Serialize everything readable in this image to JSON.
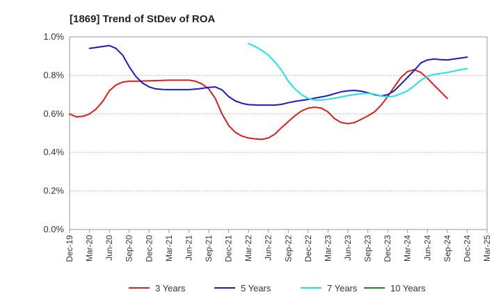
{
  "chart_data": {
    "type": "line",
    "title": "[1869]  Trend of StDev of ROA",
    "xlabel": "",
    "ylabel": "",
    "ylim": [
      0,
      0.01
    ],
    "y_ticks": [
      "0.0%",
      "0.2%",
      "0.4%",
      "0.6%",
      "0.8%",
      "1.0%"
    ],
    "x_ticks": [
      "Dec-19",
      "Mar-20",
      "Jun-20",
      "Sep-20",
      "Dec-20",
      "Mar-21",
      "Jun-21",
      "Sep-21",
      "Dec-21",
      "Mar-22",
      "Jun-22",
      "Sep-22",
      "Dec-22",
      "Mar-23",
      "Jun-23",
      "Sep-23",
      "Dec-23",
      "Mar-24",
      "Jun-24",
      "Sep-24",
      "Dec-24",
      "Mar-25"
    ],
    "grid": "horizontal dotted",
    "legend_position": "bottom",
    "series": [
      {
        "name": "3 Years",
        "color": "#e31a1c",
        "points": [
          [
            0,
            0.006
          ],
          [
            0.33,
            0.00585
          ],
          [
            0.67,
            0.00587
          ],
          [
            1,
            0.006
          ],
          [
            1.33,
            0.00625
          ],
          [
            1.67,
            0.00665
          ],
          [
            2,
            0.0072
          ],
          [
            2.33,
            0.0075
          ],
          [
            2.67,
            0.00765
          ],
          [
            3,
            0.0077
          ],
          [
            3.5,
            0.0077
          ],
          [
            4,
            0.00772
          ],
          [
            4.5,
            0.00773
          ],
          [
            5,
            0.00775
          ],
          [
            5.5,
            0.00775
          ],
          [
            6,
            0.00775
          ],
          [
            6.33,
            0.0077
          ],
          [
            6.67,
            0.00755
          ],
          [
            7,
            0.0073
          ],
          [
            7.33,
            0.0068
          ],
          [
            7.67,
            0.006
          ],
          [
            8,
            0.0054
          ],
          [
            8.33,
            0.00505
          ],
          [
            8.67,
            0.00485
          ],
          [
            9,
            0.00475
          ],
          [
            9.33,
            0.0047
          ],
          [
            9.67,
            0.00468
          ],
          [
            10,
            0.00475
          ],
          [
            10.33,
            0.00495
          ],
          [
            10.67,
            0.0053
          ],
          [
            11,
            0.0056
          ],
          [
            11.33,
            0.0059
          ],
          [
            11.67,
            0.00615
          ],
          [
            12,
            0.0063
          ],
          [
            12.33,
            0.00635
          ],
          [
            12.67,
            0.0063
          ],
          [
            13,
            0.0061
          ],
          [
            13.33,
            0.00575
          ],
          [
            13.67,
            0.00555
          ],
          [
            14,
            0.0055
          ],
          [
            14.33,
            0.00555
          ],
          [
            14.67,
            0.00572
          ],
          [
            15,
            0.0059
          ],
          [
            15.33,
            0.0061
          ],
          [
            15.67,
            0.00645
          ],
          [
            16,
            0.0069
          ],
          [
            16.33,
            0.0074
          ],
          [
            16.67,
            0.0079
          ],
          [
            17,
            0.0082
          ],
          [
            17.33,
            0.0083
          ],
          [
            17.67,
            0.00815
          ],
          [
            18,
            0.00785
          ],
          [
            18.33,
            0.0075
          ],
          [
            18.67,
            0.00715
          ],
          [
            19,
            0.0068
          ]
        ]
      },
      {
        "name": "5 Years",
        "color": "#1919c8",
        "points": [
          [
            1,
            0.0094
          ],
          [
            1.33,
            0.00945
          ],
          [
            1.67,
            0.0095
          ],
          [
            2,
            0.00955
          ],
          [
            2.33,
            0.0094
          ],
          [
            2.67,
            0.00905
          ],
          [
            3,
            0.00845
          ],
          [
            3.33,
            0.00795
          ],
          [
            3.67,
            0.0076
          ],
          [
            4,
            0.0074
          ],
          [
            4.33,
            0.0073
          ],
          [
            4.67,
            0.00727
          ],
          [
            5,
            0.00726
          ],
          [
            5.5,
            0.00726
          ],
          [
            6,
            0.00726
          ],
          [
            6.5,
            0.0073
          ],
          [
            7,
            0.00738
          ],
          [
            7.33,
            0.0074
          ],
          [
            7.67,
            0.00725
          ],
          [
            8,
            0.0069
          ],
          [
            8.33,
            0.00668
          ],
          [
            8.67,
            0.00655
          ],
          [
            9,
            0.00648
          ],
          [
            9.5,
            0.00646
          ],
          [
            10,
            0.00646
          ],
          [
            10.33,
            0.00646
          ],
          [
            10.67,
            0.0065
          ],
          [
            11,
            0.00658
          ],
          [
            11.33,
            0.00665
          ],
          [
            11.67,
            0.0067
          ],
          [
            12,
            0.00675
          ],
          [
            12.33,
            0.00682
          ],
          [
            12.67,
            0.00688
          ],
          [
            13,
            0.00695
          ],
          [
            13.33,
            0.00705
          ],
          [
            13.67,
            0.00715
          ],
          [
            14,
            0.0072
          ],
          [
            14.33,
            0.00722
          ],
          [
            14.67,
            0.00718
          ],
          [
            15,
            0.0071
          ],
          [
            15.33,
            0.007
          ],
          [
            15.67,
            0.00693
          ],
          [
            16,
            0.007
          ],
          [
            16.33,
            0.0072
          ],
          [
            16.67,
            0.00755
          ],
          [
            17,
            0.0079
          ],
          [
            17.33,
            0.00825
          ],
          [
            17.67,
            0.00865
          ],
          [
            18,
            0.0088
          ],
          [
            18.33,
            0.00885
          ],
          [
            18.67,
            0.00882
          ],
          [
            19,
            0.0088
          ],
          [
            19.33,
            0.00885
          ],
          [
            19.67,
            0.0089
          ],
          [
            20,
            0.00895
          ]
        ]
      },
      {
        "name": "7 Years",
        "color": "#19e6e6",
        "points": [
          [
            9,
            0.00965
          ],
          [
            9.33,
            0.0095
          ],
          [
            9.67,
            0.0093
          ],
          [
            10,
            0.00905
          ],
          [
            10.33,
            0.0087
          ],
          [
            10.67,
            0.00825
          ],
          [
            11,
            0.0077
          ],
          [
            11.33,
            0.0073
          ],
          [
            11.67,
            0.007
          ],
          [
            12,
            0.0068
          ],
          [
            12.33,
            0.00672
          ],
          [
            12.67,
            0.00672
          ],
          [
            13,
            0.00676
          ],
          [
            13.33,
            0.00682
          ],
          [
            13.67,
            0.00688
          ],
          [
            14,
            0.00695
          ],
          [
            14.33,
            0.007
          ],
          [
            14.67,
            0.00705
          ],
          [
            15,
            0.00707
          ],
          [
            15.33,
            0.00703
          ],
          [
            15.67,
            0.00693
          ],
          [
            16,
            0.00688
          ],
          [
            16.33,
            0.00692
          ],
          [
            16.67,
            0.00705
          ],
          [
            17,
            0.0072
          ],
          [
            17.33,
            0.00745
          ],
          [
            17.67,
            0.00775
          ],
          [
            18,
            0.00795
          ],
          [
            18.33,
            0.00805
          ],
          [
            18.67,
            0.0081
          ],
          [
            19,
            0.00815
          ],
          [
            19.33,
            0.00822
          ],
          [
            19.67,
            0.0083
          ],
          [
            20,
            0.00835
          ]
        ]
      },
      {
        "name": "10 Years",
        "color": "#1a8c1a",
        "points": []
      }
    ]
  }
}
